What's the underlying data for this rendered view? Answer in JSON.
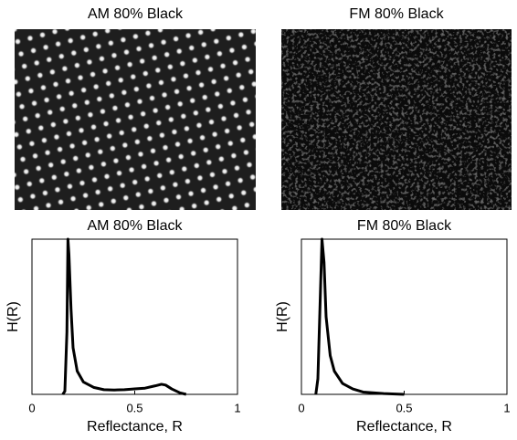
{
  "chart_data": [
    {
      "type": "image",
      "title": "AM 80% Black"
    },
    {
      "type": "image",
      "title": "FM 80% Black"
    },
    {
      "type": "line",
      "title": "AM 80% Black",
      "x_label": "Reflectance, R",
      "y_label": "H(R)",
      "x": [
        0.15,
        0.16,
        0.17,
        0.175,
        0.18,
        0.19,
        0.2,
        0.22,
        0.25,
        0.3,
        0.35,
        0.4,
        0.45,
        0.5,
        0.55,
        0.6,
        0.63,
        0.65,
        0.68,
        0.72,
        0.75
      ],
      "values": [
        0,
        0.02,
        0.4,
        1.0,
        0.9,
        0.55,
        0.3,
        0.15,
        0.08,
        0.045,
        0.03,
        0.028,
        0.03,
        0.035,
        0.04,
        0.055,
        0.065,
        0.06,
        0.035,
        0.01,
        0
      ],
      "color": "#000000",
      "xlim": [
        0,
        1
      ],
      "xticks": [
        0,
        0.5,
        1
      ],
      "ylim": [
        0,
        1
      ]
    },
    {
      "type": "line",
      "title": "FM 80% Black",
      "x_label": "Reflectance, R",
      "y_label": "H(R)",
      "x": [
        0.07,
        0.08,
        0.09,
        0.1,
        0.11,
        0.12,
        0.14,
        0.16,
        0.2,
        0.25,
        0.3,
        0.4,
        0.5
      ],
      "values": [
        0,
        0.1,
        0.55,
        1.0,
        0.85,
        0.5,
        0.25,
        0.15,
        0.07,
        0.035,
        0.015,
        0.005,
        0
      ],
      "color": "#000000",
      "xlim": [
        0,
        1
      ],
      "xticks": [
        0,
        0.5,
        1
      ],
      "ylim": [
        0,
        1
      ]
    }
  ]
}
